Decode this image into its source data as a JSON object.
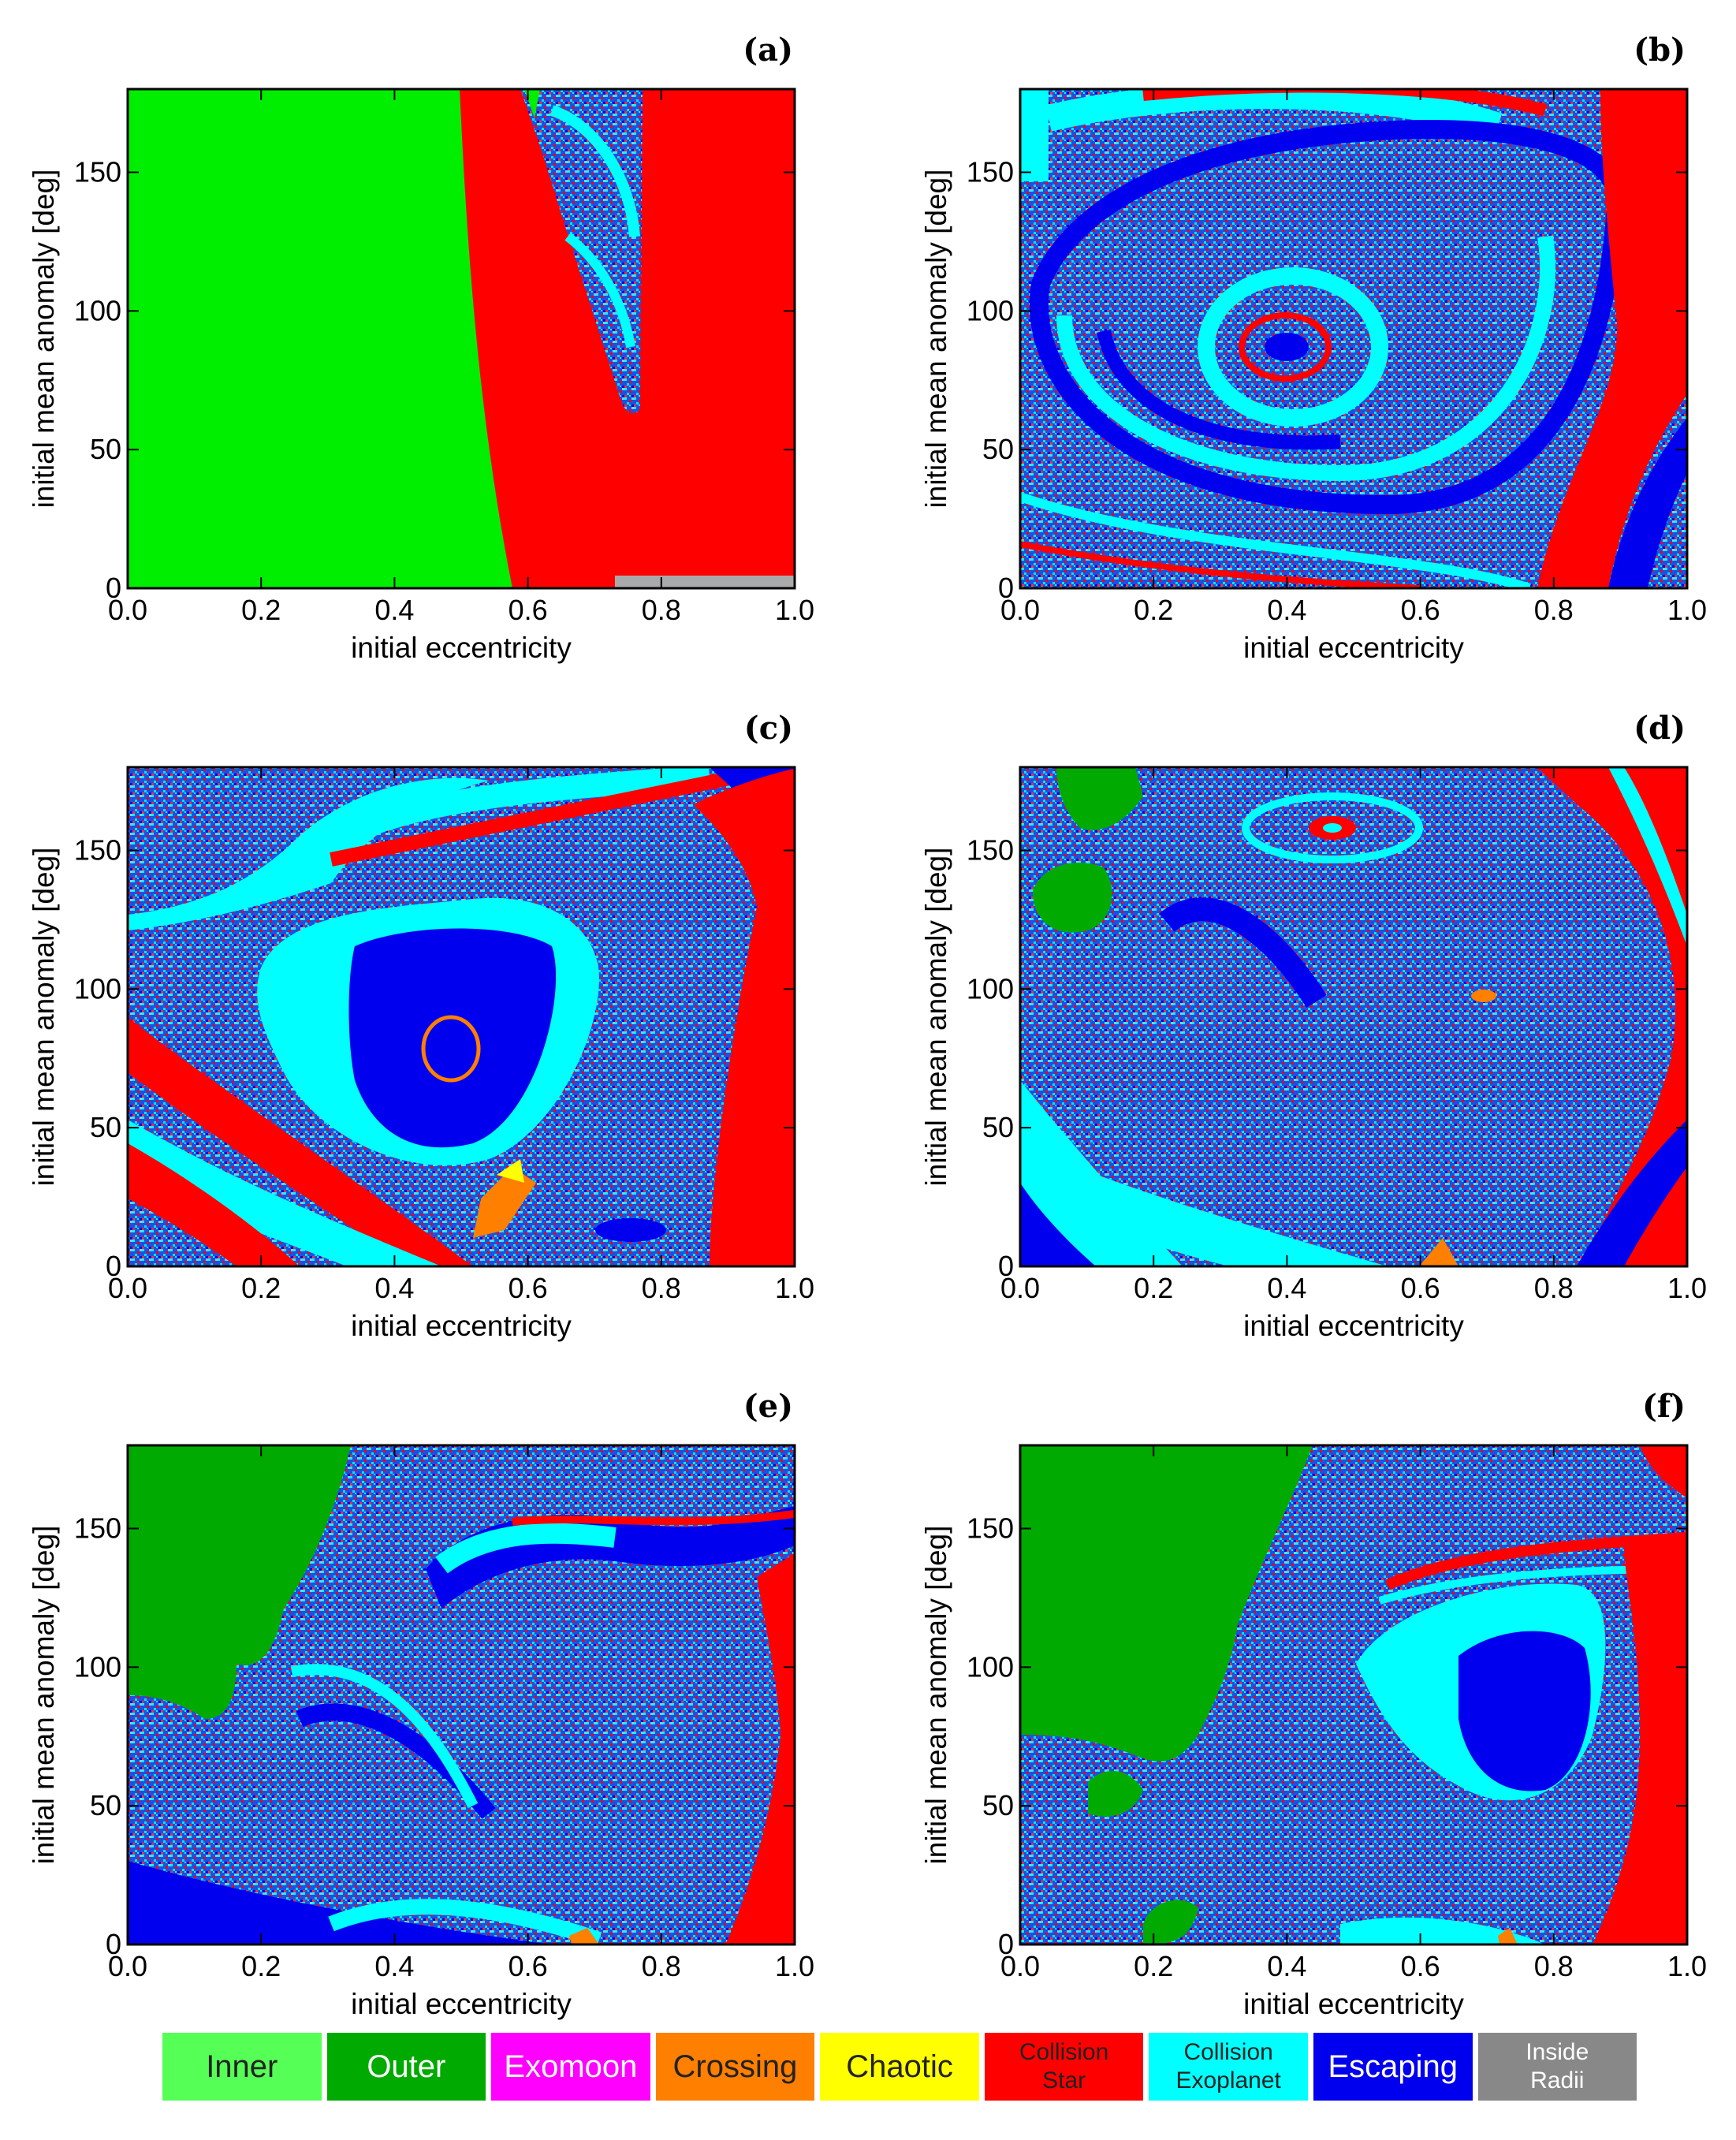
{
  "chart_data": {
    "type": "heatmap",
    "x_axis": {
      "label": "initial eccentricity",
      "range": [
        0,
        1
      ],
      "ticks": [
        "0.0",
        "0.2",
        "0.4",
        "0.6",
        "0.8",
        "1.0"
      ],
      "tick_values": [
        0,
        0.2,
        0.4,
        0.6,
        0.8,
        1.0
      ]
    },
    "y_axis": {
      "label": "initial mean anomaly [deg]",
      "range": [
        0,
        180
      ],
      "ticks": [
        "0",
        "50",
        "100",
        "150"
      ],
      "tick_values": [
        0,
        50,
        100,
        150
      ]
    },
    "panels": [
      {
        "id": "a",
        "label": "(a)"
      },
      {
        "id": "b",
        "label": "(b)"
      },
      {
        "id": "c",
        "label": "(c)"
      },
      {
        "id": "d",
        "label": "(d)"
      },
      {
        "id": "e",
        "label": "(e)"
      },
      {
        "id": "f",
        "label": "(f)"
      }
    ],
    "categories": [
      {
        "key": "inner",
        "lines": [
          "Inner"
        ],
        "color": "#55ff55",
        "text_color": "#222222"
      },
      {
        "key": "outer",
        "lines": [
          "Outer"
        ],
        "color": "#00aa00",
        "text_color": "#ffffff"
      },
      {
        "key": "exomoon",
        "lines": [
          "Exomoon"
        ],
        "color": "#ff00ff",
        "text_color": "#ffffff"
      },
      {
        "key": "crossing",
        "lines": [
          "Crossing"
        ],
        "color": "#ff7f00",
        "text_color": "#222222"
      },
      {
        "key": "chaotic",
        "lines": [
          "Chaotic"
        ],
        "color": "#ffff00",
        "text_color": "#222222"
      },
      {
        "key": "collision_star",
        "lines": [
          "Collision",
          "Star"
        ],
        "color": "#ff0000",
        "text_color": "#222222"
      },
      {
        "key": "collision_exoplanet",
        "lines": [
          "Collision",
          "Exoplanet"
        ],
        "color": "#00ffff",
        "text_color": "#222222"
      },
      {
        "key": "escaping",
        "lines": [
          "Escaping"
        ],
        "color": "#0000ee",
        "text_color": "#ffffff"
      },
      {
        "key": "inside_radii",
        "lines": [
          "Inside",
          "Radii"
        ],
        "color": "#888888",
        "text_color": "#ffffff"
      }
    ],
    "legend_placement": "bottom",
    "grid": false
  }
}
